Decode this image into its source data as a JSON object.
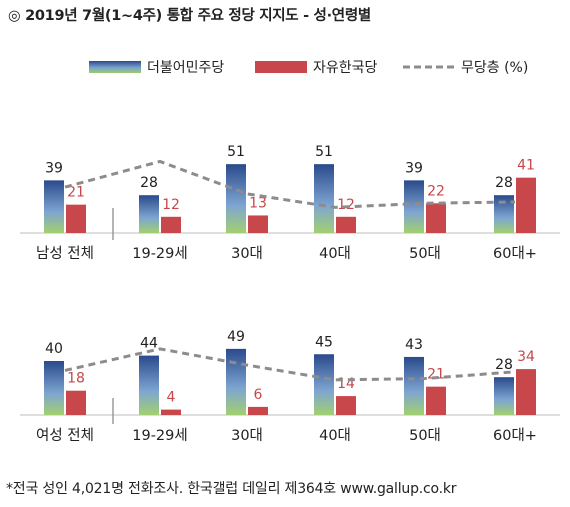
{
  "title": "◎  2019년 7월(1~4주) 통합 주요 정당 지지도 - 성·연령별",
  "legend": {
    "items": [
      {
        "label": "더불어민주당",
        "color": "#2f4f8f"
      },
      {
        "label": "자유한국당",
        "color": "#c8474a"
      },
      {
        "label": "무당층 (%)",
        "color": "#8c8c8c"
      }
    ]
  },
  "chart_data": [
    {
      "type": "bar",
      "group": "남성",
      "categories": [
        "남성 전체",
        "19-29세",
        "30대",
        "40대",
        "50대",
        "60대+"
      ],
      "series": [
        {
          "name": "더불어민주당",
          "values": [
            39,
            28,
            51,
            51,
            39,
            28
          ]
        },
        {
          "name": "자유한국당",
          "values": [
            21,
            12,
            13,
            12,
            22,
            41
          ]
        },
        {
          "name": "무당층 (%)",
          "type": "line",
          "style": "dashed",
          "values": [
            34,
            53,
            29,
            19,
            22,
            23
          ]
        }
      ]
    },
    {
      "type": "bar",
      "group": "여성",
      "categories": [
        "여성 전체",
        "19-29세",
        "30대",
        "40대",
        "50대",
        "60대+"
      ],
      "series": [
        {
          "name": "더불어민주당",
          "values": [
            40,
            44,
            49,
            45,
            43,
            28
          ]
        },
        {
          "name": "자유한국당",
          "values": [
            18,
            4,
            6,
            14,
            21,
            34
          ]
        },
        {
          "name": "무당층 (%)",
          "type": "line",
          "style": "dashed",
          "values": [
            33,
            49,
            37,
            26,
            27,
            32
          ]
        }
      ]
    }
  ],
  "footnote": "*전국 성인 4,021명 전화조사. 한국갤럽 데일리 제364호 www.gallup.co.kr"
}
